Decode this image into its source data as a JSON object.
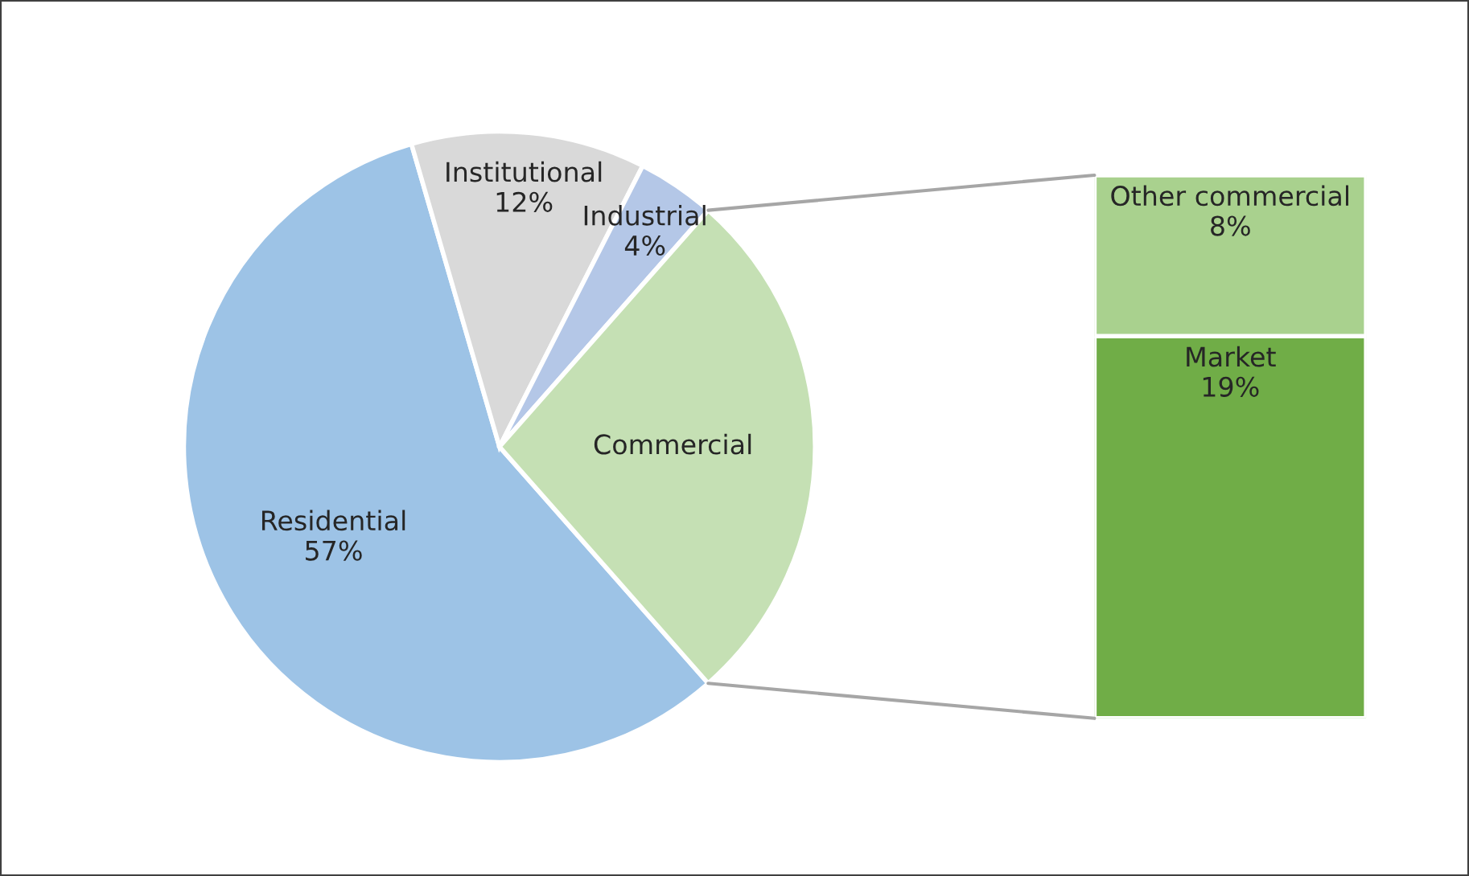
{
  "chart_data": [
    {
      "type": "pie",
      "categories": [
        "Residential",
        "Institutional",
        "Industrial",
        "Commercial"
      ],
      "values": [
        57,
        12,
        4,
        27
      ],
      "colors": [
        "#9dc3e6",
        "#d9d9d9",
        "#b4c7e7",
        "#c5e0b4"
      ],
      "value_labels": [
        "57%",
        "12%",
        "4%",
        null
      ]
    },
    {
      "type": "bar",
      "stacked": true,
      "categories": [
        null
      ],
      "series": [
        {
          "name": "Market",
          "color": "#70ad47",
          "values": [
            19
          ],
          "value_labels": [
            "19%"
          ]
        },
        {
          "name": "Other commercial",
          "color": "#a9d18e",
          "values": [
            8
          ],
          "value_labels": [
            "8%"
          ]
        }
      ]
    }
  ]
}
